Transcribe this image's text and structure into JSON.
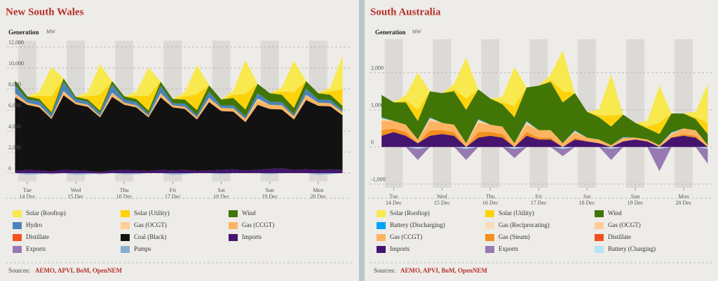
{
  "chart_data": [
    {
      "type": "stacked_area",
      "title": "New South Wales",
      "y_label": "Generation",
      "y_unit": "MW",
      "x": [
        -6,
        0,
        6,
        12,
        18,
        24,
        30,
        36,
        42,
        48,
        54,
        60,
        66,
        72,
        78,
        84,
        90,
        96,
        102,
        108,
        114,
        120,
        126,
        132,
        138,
        144,
        150,
        156
      ],
      "xlim": [
        -10,
        160
      ],
      "xticks": [
        {
          "value": 0,
          "label": [
            "Tue",
            "14 Dec"
          ]
        },
        {
          "value": 24,
          "label": [
            "Wed",
            "15 Dec"
          ]
        },
        {
          "value": 48,
          "label": [
            "Thu",
            "16 Dec"
          ]
        },
        {
          "value": 72,
          "label": [
            "Fri",
            "17 Dec"
          ]
        },
        {
          "value": 96,
          "label": [
            "Sat",
            "18 Dec"
          ]
        },
        {
          "value": 120,
          "label": [
            "Sun",
            "19 Dec"
          ]
        },
        {
          "value": 144,
          "label": [
            "Mon",
            "20 Dec"
          ]
        }
      ],
      "ylim": [
        -800,
        12600
      ],
      "yticks": [
        0,
        {
          "value": 2000,
          "label": "2,000"
        },
        {
          "value": 4000,
          "label": "4,000"
        },
        {
          "value": 6000,
          "label": "6,000"
        },
        {
          "value": 8000,
          "label": "8,000"
        },
        {
          "value": 10000,
          "label": "10,000"
        },
        {
          "value": 12000,
          "label": "12,000"
        }
      ],
      "grid": true,
      "series": [
        {
          "name": "Solar (Rooftop)",
          "color": "#f7e94e",
          "values": [
            0,
            0,
            400,
            2800,
            0,
            0,
            400,
            2900,
            0,
            0,
            400,
            2700,
            0,
            0,
            400,
            2800,
            0,
            0,
            400,
            3200,
            0,
            0,
            400,
            3000,
            0,
            0,
            400,
            3200
          ]
        },
        {
          "name": "Solar (Utility)",
          "color": "#fdd20a",
          "values": [
            0,
            0,
            300,
            1500,
            0,
            0,
            300,
            1500,
            0,
            0,
            300,
            1400,
            0,
            0,
            300,
            1500,
            0,
            0,
            300,
            1500,
            0,
            0,
            300,
            1500,
            0,
            0,
            300,
            1600
          ]
        },
        {
          "name": "Wind",
          "color": "#417505",
          "values": [
            400,
            300,
            200,
            200,
            300,
            200,
            200,
            200,
            300,
            300,
            300,
            300,
            400,
            400,
            400,
            500,
            600,
            600,
            700,
            700,
            900,
            800,
            700,
            600,
            700,
            600,
            500,
            400
          ]
        },
        {
          "name": "Hydro",
          "color": "#4a84b8",
          "values": [
            800,
            300,
            400,
            300,
            900,
            300,
            300,
            300,
            800,
            300,
            300,
            200,
            700,
            200,
            300,
            200,
            600,
            200,
            300,
            200,
            500,
            300,
            300,
            200,
            600,
            300,
            300,
            200
          ]
        },
        {
          "name": "Gas (OCGT)",
          "color": "#ffcd96",
          "values": [
            100,
            0,
            0,
            0,
            100,
            0,
            0,
            0,
            100,
            0,
            0,
            0,
            100,
            0,
            0,
            0,
            100,
            0,
            0,
            0,
            200,
            0,
            0,
            0,
            100,
            0,
            0,
            0
          ]
        },
        {
          "name": "Gas (CCGT)",
          "color": "#fdb462",
          "values": [
            300,
            200,
            200,
            150,
            300,
            200,
            200,
            150,
            300,
            200,
            200,
            150,
            300,
            200,
            200,
            200,
            300,
            300,
            300,
            300,
            400,
            400,
            400,
            300,
            400,
            300,
            300,
            300
          ]
        },
        {
          "name": "Distillate",
          "color": "#f35020",
          "values": [
            0,
            0,
            0,
            0,
            0,
            0,
            0,
            0,
            0,
            0,
            0,
            0,
            0,
            0,
            0,
            0,
            0,
            0,
            0,
            0,
            0,
            0,
            0,
            0,
            0,
            0,
            0,
            0
          ]
        },
        {
          "name": "Coal (Black)",
          "color": "#121212",
          "values": [
            7000,
            6200,
            6000,
            5000,
            7100,
            6300,
            6100,
            5200,
            7000,
            6200,
            6000,
            5100,
            6900,
            6000,
            5800,
            4900,
            6500,
            5600,
            5500,
            4600,
            6200,
            5700,
            5600,
            4800,
            6600,
            6100,
            6000,
            5200
          ]
        },
        {
          "name": "Imports",
          "color": "#44146f",
          "values": [
            200,
            300,
            250,
            150,
            300,
            250,
            200,
            100,
            250,
            300,
            250,
            200,
            300,
            250,
            300,
            200,
            250,
            300,
            350,
            250,
            300,
            400,
            450,
            300,
            350,
            300,
            350,
            300
          ]
        },
        {
          "name": "Exports",
          "color": "#977ab1",
          "values": [
            0,
            0,
            0,
            -100,
            0,
            0,
            0,
            -100,
            0,
            0,
            0,
            0,
            0,
            0,
            0,
            0,
            0,
            0,
            0,
            0,
            0,
            0,
            0,
            0,
            0,
            0,
            0,
            0
          ]
        },
        {
          "name": "Pumps",
          "color": "#88afd0",
          "values": [
            0,
            -150,
            -100,
            0,
            0,
            -150,
            -100,
            0,
            0,
            -100,
            -100,
            0,
            0,
            -150,
            -100,
            0,
            0,
            -100,
            0,
            0,
            0,
            -100,
            0,
            0,
            0,
            -150,
            -100,
            0
          ]
        }
      ]
    },
    {
      "type": "stacked_area",
      "title": "South Australia",
      "y_label": "Generation",
      "y_unit": "MW",
      "x": [
        -6,
        0,
        6,
        12,
        18,
        24,
        30,
        36,
        42,
        48,
        54,
        60,
        66,
        72,
        78,
        84,
        90,
        96,
        102,
        108,
        114,
        120,
        126,
        132,
        138,
        144,
        150,
        156
      ],
      "xlim": [
        -12,
        159
      ],
      "xticks": [
        {
          "value": 0,
          "label": [
            "Tue",
            "14 Dec"
          ]
        },
        {
          "value": 24,
          "label": [
            "Wed",
            "15 Dec"
          ]
        },
        {
          "value": 48,
          "label": [
            "Thu",
            "16 Dec"
          ]
        },
        {
          "value": 72,
          "label": [
            "Fri",
            "17 Dec"
          ]
        },
        {
          "value": 96,
          "label": [
            "Sat",
            "18 Dec"
          ]
        },
        {
          "value": 120,
          "label": [
            "Sun",
            "19 Dec"
          ]
        },
        {
          "value": 144,
          "label": [
            "Mon",
            "20 Dec"
          ]
        }
      ],
      "ylim": [
        -1100,
        2900
      ],
      "yticks": [
        {
          "value": -1000,
          "label": "-1,000"
        },
        0,
        {
          "value": 1000,
          "label": "1,000"
        },
        {
          "value": 2000,
          "label": "2,000"
        }
      ],
      "grid": true,
      "series": [
        {
          "name": "Solar (Rooftop)",
          "color": "#f7e94e",
          "values": [
            0,
            0,
            150,
            1000,
            0,
            0,
            150,
            1100,
            0,
            0,
            150,
            1050,
            0,
            0,
            150,
            1100,
            0,
            0,
            150,
            1100,
            0,
            0,
            150,
            1000,
            0,
            0,
            150,
            1050
          ]
        },
        {
          "name": "Solar (Utility)",
          "color": "#fdd20a",
          "values": [
            0,
            0,
            50,
            300,
            0,
            0,
            50,
            300,
            0,
            0,
            50,
            300,
            0,
            0,
            50,
            300,
            0,
            0,
            50,
            300,
            0,
            0,
            50,
            300,
            0,
            0,
            50,
            300
          ]
        },
        {
          "name": "Wind",
          "color": "#417505",
          "values": [
            600,
            500,
            600,
            500,
            700,
            800,
            900,
            900,
            800,
            700,
            600,
            700,
            900,
            1200,
            1300,
            1100,
            1000,
            700,
            600,
            500,
            600,
            400,
            300,
            300,
            500,
            400,
            300,
            300
          ]
        },
        {
          "name": "Battery (Discharging)",
          "color": "#00a2fa",
          "values": [
            20,
            0,
            0,
            0,
            20,
            0,
            0,
            0,
            20,
            0,
            0,
            0,
            20,
            0,
            0,
            0,
            20,
            0,
            0,
            0,
            20,
            0,
            0,
            0,
            20,
            0,
            0,
            0
          ]
        },
        {
          "name": "Gas (Reciprocating)",
          "color": "#f9dcbc",
          "values": [
            30,
            0,
            0,
            0,
            30,
            0,
            0,
            0,
            30,
            0,
            0,
            0,
            30,
            0,
            0,
            0,
            30,
            0,
            0,
            0,
            0,
            0,
            0,
            0,
            30,
            0,
            0,
            0
          ]
        },
        {
          "name": "Gas (OCGT)",
          "color": "#ffcd96",
          "values": [
            50,
            0,
            0,
            0,
            50,
            0,
            0,
            0,
            50,
            0,
            0,
            0,
            50,
            0,
            0,
            0,
            0,
            0,
            0,
            0,
            0,
            0,
            0,
            0,
            0,
            0,
            0,
            0
          ]
        },
        {
          "name": "Gas (CCGT)",
          "color": "#fdb462",
          "values": [
            250,
            200,
            200,
            100,
            250,
            200,
            200,
            100,
            250,
            200,
            200,
            100,
            200,
            200,
            200,
            100,
            150,
            100,
            100,
            50,
            100,
            50,
            50,
            50,
            100,
            150,
            150,
            50
          ]
        },
        {
          "name": "Gas (Steam)",
          "color": "#f48e1b",
          "values": [
            150,
            100,
            100,
            0,
            150,
            100,
            100,
            0,
            150,
            100,
            100,
            0,
            100,
            50,
            50,
            0,
            50,
            0,
            0,
            0,
            0,
            0,
            0,
            0,
            0,
            50,
            50,
            0
          ]
        },
        {
          "name": "Distillate",
          "color": "#f35020",
          "values": [
            0,
            0,
            0,
            0,
            0,
            0,
            0,
            0,
            0,
            0,
            0,
            0,
            0,
            0,
            0,
            0,
            0,
            0,
            0,
            0,
            0,
            0,
            0,
            0,
            0,
            0,
            0,
            0
          ]
        },
        {
          "name": "Imports",
          "color": "#44146f",
          "values": [
            300,
            400,
            300,
            100,
            300,
            350,
            300,
            0,
            250,
            300,
            250,
            0,
            300,
            200,
            200,
            0,
            200,
            150,
            100,
            0,
            150,
            200,
            150,
            0,
            250,
            300,
            250,
            0
          ]
        },
        {
          "name": "Exports",
          "color": "#977ab1",
          "values": [
            0,
            0,
            0,
            -300,
            0,
            0,
            0,
            -300,
            0,
            0,
            0,
            -250,
            0,
            0,
            0,
            -200,
            0,
            0,
            0,
            -300,
            0,
            0,
            0,
            -600,
            0,
            0,
            0,
            -400
          ]
        },
        {
          "name": "Battery (Charging)",
          "color": "#b3e5f5",
          "values": [
            0,
            0,
            0,
            -50,
            0,
            0,
            0,
            -50,
            0,
            0,
            0,
            -50,
            0,
            0,
            0,
            -50,
            0,
            0,
            0,
            -50,
            0,
            0,
            0,
            -50,
            0,
            0,
            0,
            -50
          ]
        }
      ]
    }
  ],
  "sources": {
    "label": "Sources:",
    "text": "AEMO, APVI, BoM, OpenNEM"
  }
}
